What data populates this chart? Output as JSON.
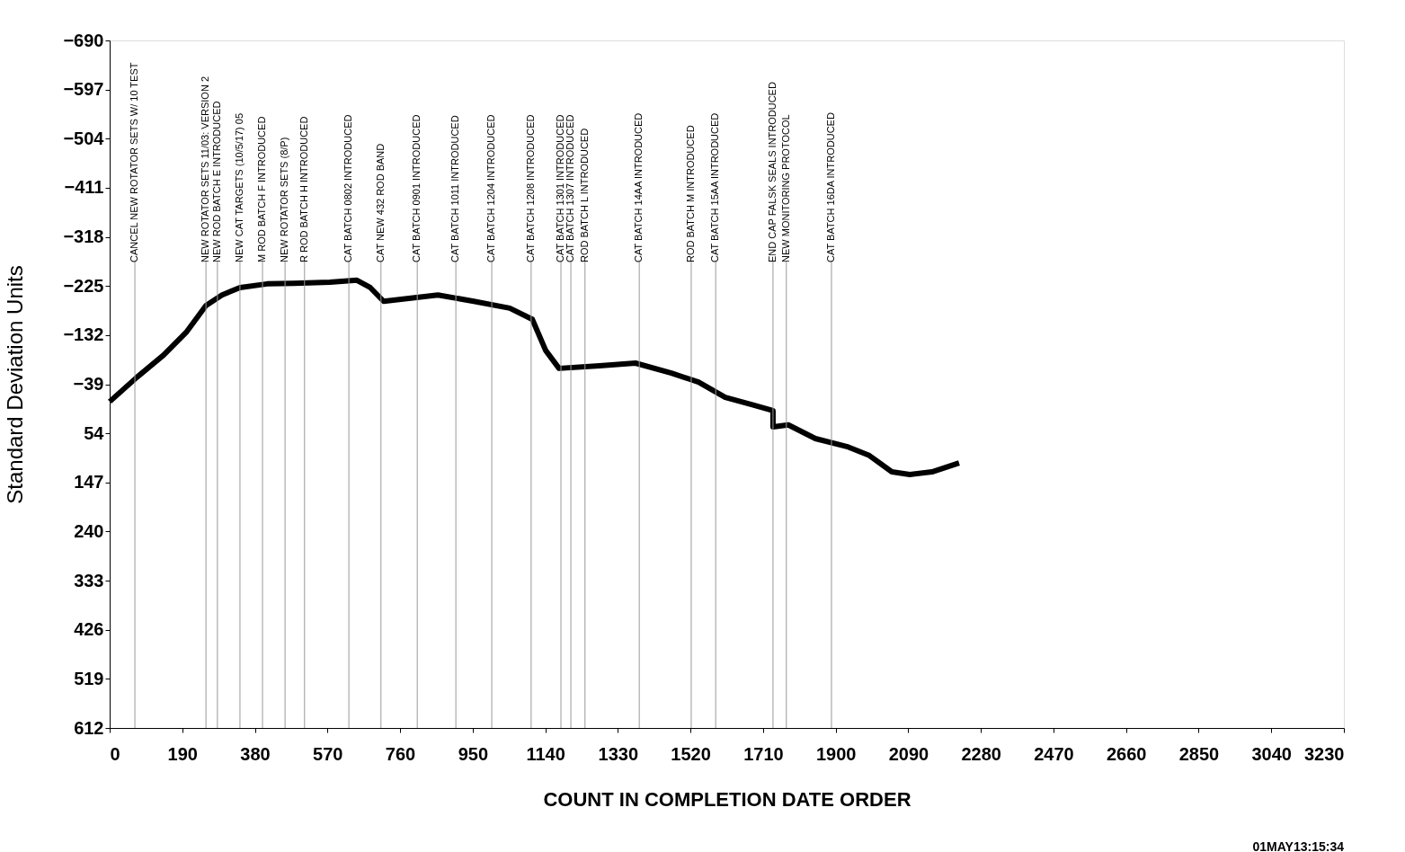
{
  "chart_data": {
    "type": "line",
    "xlabel": "COUNT IN COMPLETION DATE ORDER",
    "ylabel": "Standard Deviation Units",
    "xlim": [
      0,
      3230
    ],
    "xticks": [
      0,
      190,
      380,
      570,
      760,
      950,
      1140,
      1330,
      1520,
      1710,
      1900,
      2090,
      2280,
      2470,
      2660,
      2850,
      3040,
      3230
    ],
    "ylim": [
      612,
      -690
    ],
    "yticks": [
      -690,
      -597,
      -504,
      -411,
      -318,
      -225,
      -132,
      -39,
      54,
      147,
      240,
      333,
      426,
      519,
      612
    ],
    "grid": false,
    "series": [
      {
        "color": "#000000",
        "x": [
          0,
          71,
          141,
          200,
          252,
          294,
          341,
          412,
          482,
          576,
          647,
          682,
          717,
          788,
          859,
          953,
          1047,
          1106,
          1141,
          1176,
          1282,
          1376,
          1470,
          1541,
          1611,
          1682,
          1736,
          1736,
          1776,
          1847,
          1929,
          1988,
          2047,
          2094,
          2152,
          2223
        ],
        "values": [
          -6,
          -52,
          -94,
          -137,
          -188,
          -208,
          -222,
          -229,
          -230,
          -232,
          -236,
          -222,
          -196,
          -202,
          -208,
          -196,
          -183,
          -162,
          -103,
          -69,
          -74,
          -79,
          -60,
          -43,
          -14,
          0,
          11,
          42,
          38,
          64,
          79,
          96,
          127,
          132,
          127,
          110
        ]
      }
    ],
    "ref_lines": [
      {
        "axis": "x",
        "value": 66,
        "label": "CANCEL NEW ROTATOR SETS W/ 10 TEST",
        "color": "#999999"
      },
      {
        "axis": "x",
        "value": 252,
        "label": "NEW ROTATOR SETS 11/03: VERSION 2",
        "color": "#999999"
      },
      {
        "axis": "x",
        "value": 282,
        "label": "NEW ROD BATCH E INTRODUCED",
        "color": "#999999"
      },
      {
        "axis": "x",
        "value": 341,
        "label": "NEW CAT TARGETS (10/5/17) 05",
        "color": "#999999"
      },
      {
        "axis": "x",
        "value": 400,
        "label": "M ROD BATCH F INTRODUCED",
        "color": "#999999"
      },
      {
        "axis": "x",
        "value": 459,
        "label": "NEW ROTATOR SETS (8/P)",
        "color": "#999999"
      },
      {
        "axis": "x",
        "value": 510,
        "label": "R ROD BATCH H INTRODUCED",
        "color": "#999999"
      },
      {
        "axis": "x",
        "value": 626,
        "label": "CAT BATCH 0802 INTRODUCED",
        "color": "#999999"
      },
      {
        "axis": "x",
        "value": 710,
        "label": "CAT NEW 432 ROD BAND",
        "color": "#999999"
      },
      {
        "axis": "x",
        "value": 805,
        "label": "CAT BATCH 0901 INTRODUCED",
        "color": "#999999"
      },
      {
        "axis": "x",
        "value": 906,
        "label": "CAT BATCH 1011 INTRODUCED",
        "color": "#999999"
      },
      {
        "axis": "x",
        "value": 1000,
        "label": "CAT BATCH 1204 INTRODUCED",
        "color": "#999999"
      },
      {
        "axis": "x",
        "value": 1103,
        "label": "CAT BATCH 1208 INTRODUCED",
        "color": "#999999"
      },
      {
        "axis": "x",
        "value": 1181,
        "label": "CAT BATCH 1301 INTRODUCED",
        "color": "#999999"
      },
      {
        "axis": "x",
        "value": 1207,
        "label": "CAT BATCH 1307 INTRODUCED",
        "color": "#999999"
      },
      {
        "axis": "x",
        "value": 1244,
        "label": "ROD BATCH L INTRODUCED",
        "color": "#999999"
      },
      {
        "axis": "x",
        "value": 1386,
        "label": "CAT BATCH 14AA INTRODUCED",
        "color": "#999999"
      },
      {
        "axis": "x",
        "value": 1522,
        "label": "ROD BATCH M INTRODUCED",
        "color": "#999999"
      },
      {
        "axis": "x",
        "value": 1586,
        "label": "CAT BATCH 15AA INTRODUCED",
        "color": "#999999"
      },
      {
        "axis": "x",
        "value": 1736,
        "label": "END CAP FALSK SEALS INTRODUCED",
        "color": "#999999"
      },
      {
        "axis": "x",
        "value": 1771,
        "label": "NEW MONITORING PROTOCOL",
        "color": "#999999"
      },
      {
        "axis": "x",
        "value": 1889,
        "label": "CAT BATCH 16DA INTRODUCED",
        "color": "#999999"
      }
    ],
    "annotations": [
      "01MAY13:15:34"
    ]
  }
}
